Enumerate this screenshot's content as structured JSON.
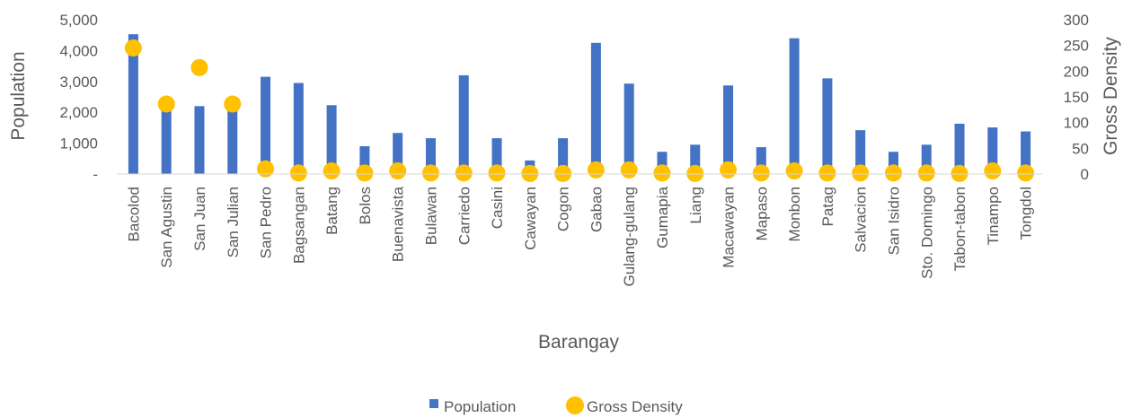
{
  "chart_data": {
    "type": "bar",
    "xlabel": "Barangay",
    "ylabel": "Population",
    "y2label": "Gross Density",
    "ylim": [
      0,
      5000
    ],
    "y2lim": [
      0,
      300
    ],
    "y_ticks": [
      "-",
      "1,000",
      "2,000",
      "3,000",
      "4,000",
      "5,000"
    ],
    "y2_ticks": [
      "0",
      "50",
      "100",
      "150",
      "200",
      "250",
      "300"
    ],
    "y_tick_values": [
      0,
      1000,
      2000,
      3000,
      4000,
      5000
    ],
    "y2_tick_values": [
      0,
      50,
      100,
      150,
      200,
      250,
      300
    ],
    "legend_position": "bottom",
    "categories": [
      "Bacolod",
      "San Agustin",
      "San Juan",
      "San Julian",
      "San Pedro",
      "Bagsangan",
      "Batang",
      "Bolos",
      "Buenavista",
      "Bulawan",
      "Carriedo",
      "Casini",
      "Cawayan",
      "Cogon",
      "Gabao",
      "Gulang-gulang",
      "Gumapia",
      "Liang",
      "Macawayan",
      "Mapaso",
      "Monbon",
      "Patag",
      "Salvacion",
      "San Isidro",
      "Sto. Domingo",
      "Tabon-tabon",
      "Tinampo",
      "Tongdol"
    ],
    "series": [
      {
        "name": "Population",
        "type": "bar",
        "axis": "left",
        "color": "#4472C4",
        "values": [
          4530,
          2350,
          2200,
          2300,
          3150,
          2950,
          2230,
          900,
          1330,
          1160,
          3200,
          1160,
          440,
          1160,
          4250,
          2930,
          720,
          950,
          2870,
          870,
          4400,
          3100,
          1420,
          720,
          950,
          1630,
          1510,
          1380
        ]
      },
      {
        "name": "Gross Density",
        "type": "scatter",
        "axis": "right",
        "color": "#FFC000",
        "values": [
          245,
          136,
          207,
          136,
          10,
          2,
          6,
          2,
          6,
          2,
          2,
          2,
          1,
          1,
          8,
          8,
          2,
          1,
          8,
          2,
          6,
          2,
          2,
          2,
          2,
          1,
          6,
          2
        ]
      }
    ]
  }
}
